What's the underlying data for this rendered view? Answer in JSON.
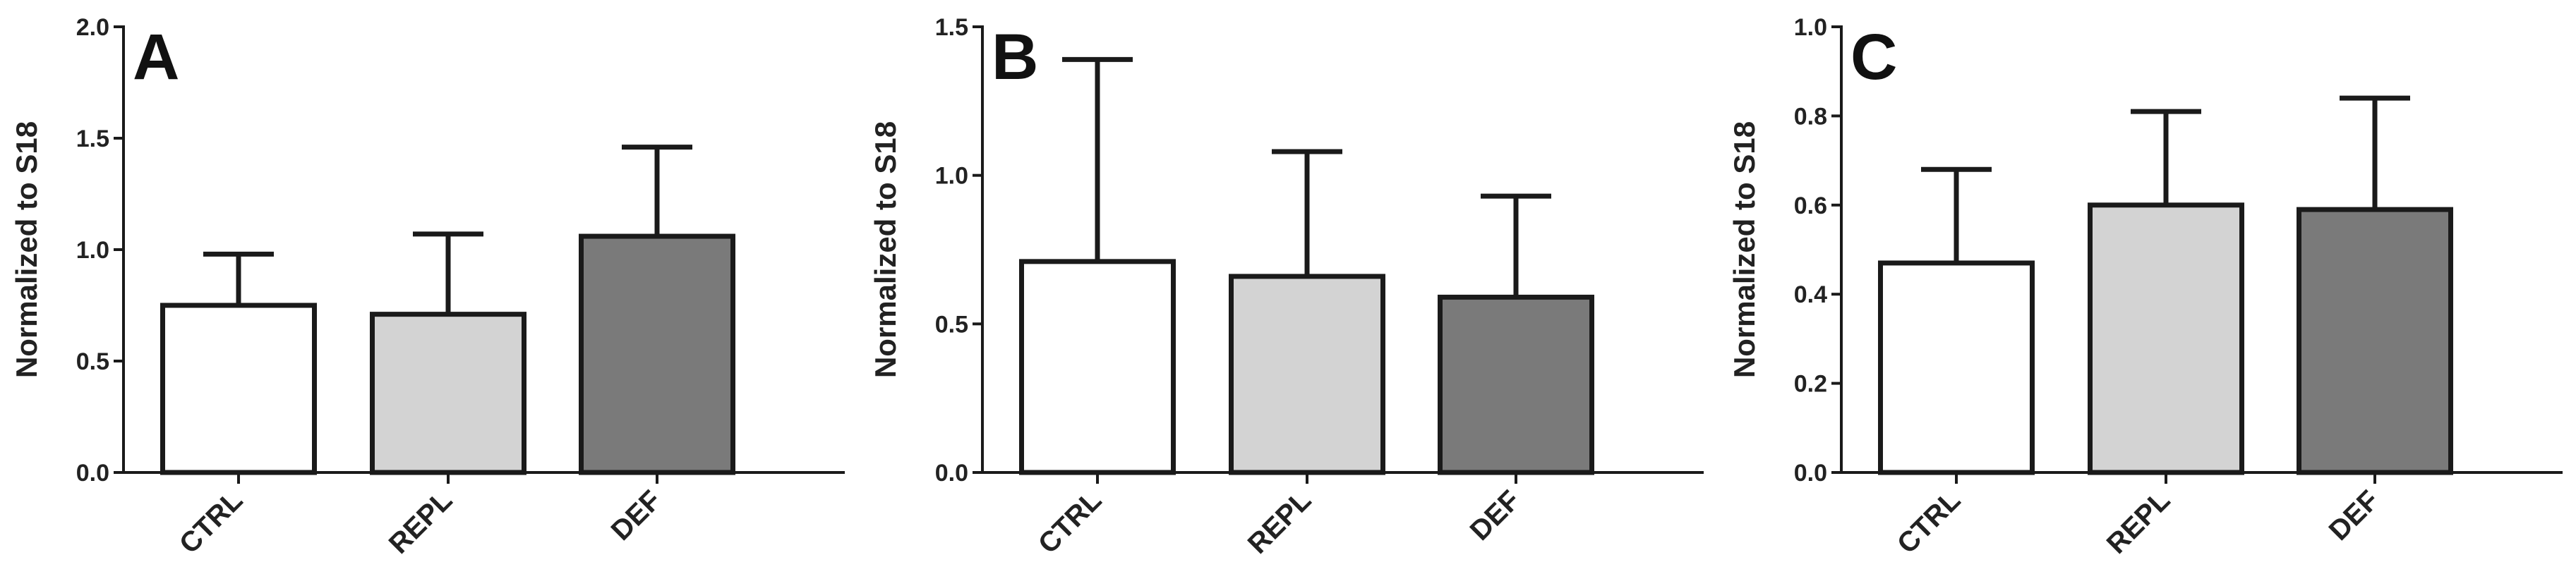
{
  "chart_data": [
    {
      "panel": "A",
      "type": "bar",
      "categories": [
        "CTRL",
        "REPL",
        "DEF"
      ],
      "values": [
        0.75,
        0.71,
        1.06
      ],
      "error_upper": [
        0.98,
        1.07,
        1.46
      ],
      "ylabel": "Normalized to S18",
      "ylim": [
        0,
        2.0
      ],
      "yticks": [
        "0.0",
        "0.5",
        "1.0",
        "1.5",
        "2.0"
      ],
      "bar_colors": [
        "#ffffff",
        "#d3d3d3",
        "#7a7a7a"
      ],
      "grid": false
    },
    {
      "panel": "B",
      "type": "bar",
      "categories": [
        "CTRL",
        "REPL",
        "DEF"
      ],
      "values": [
        0.71,
        0.66,
        0.59
      ],
      "error_upper": [
        1.39,
        1.08,
        0.93
      ],
      "ylabel": "Normalized to S18",
      "ylim": [
        0,
        1.5
      ],
      "yticks": [
        "0.0",
        "0.5",
        "1.0",
        "1.5"
      ],
      "bar_colors": [
        "#ffffff",
        "#d3d3d3",
        "#7a7a7a"
      ],
      "grid": false
    },
    {
      "panel": "C",
      "type": "bar",
      "categories": [
        "CTRL",
        "REPL",
        "DEF"
      ],
      "values": [
        0.47,
        0.6,
        0.59
      ],
      "error_upper": [
        0.68,
        0.81,
        0.84
      ],
      "ylabel": "Normalized to S18",
      "ylim": [
        0,
        1.0
      ],
      "yticks": [
        "0.0",
        "0.2",
        "0.4",
        "0.6",
        "0.8",
        "1.0"
      ],
      "bar_colors": [
        "#ffffff",
        "#d3d3d3",
        "#7a7a7a"
      ],
      "grid": false
    }
  ]
}
